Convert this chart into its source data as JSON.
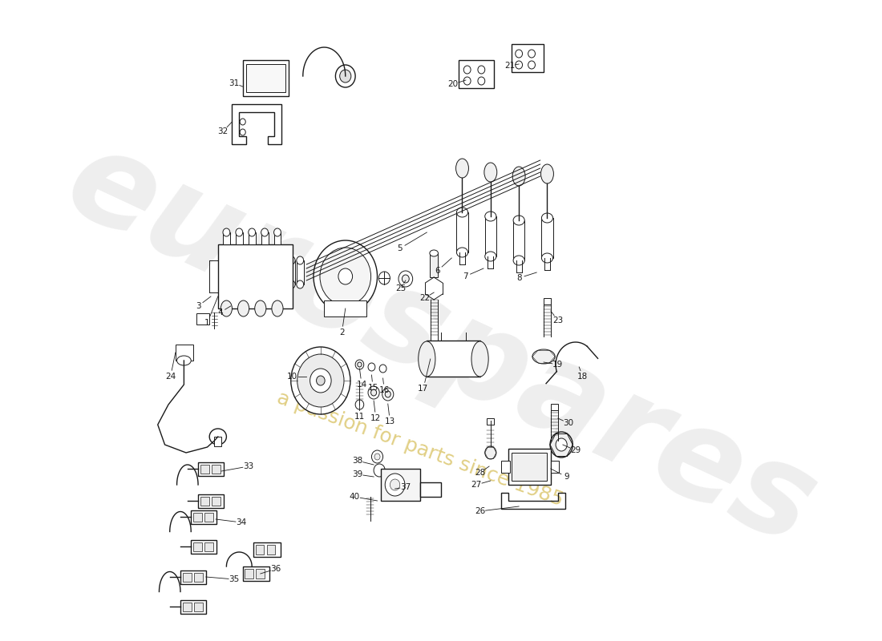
{
  "bg_color": "#ffffff",
  "line_color": "#1a1a1a",
  "label_color": "#111111",
  "watermark_color2": "#c8a820",
  "lw_thin": 0.7,
  "lw_med": 1.0,
  "lw_thick": 1.4
}
